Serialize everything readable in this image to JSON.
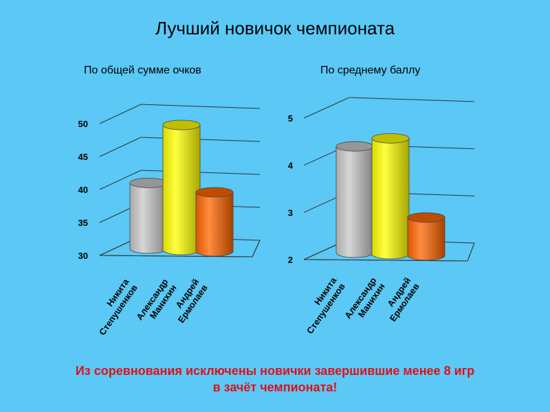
{
  "title": "Лучший новичок чемпионата",
  "note_line1": "Из соревнования  исключены  новички  завершившие  менее  8 игр",
  "note_line2": "в зачёт чемпионата!",
  "chart_data": [
    {
      "type": "bar",
      "title": "По общей сумме очков",
      "categories": [
        [
          "Никита",
          "Степушенков"
        ],
        [
          "Александр",
          "Манихин"
        ],
        [
          "Андрей",
          "Ермолаев"
        ]
      ],
      "values": [
        41,
        50,
        40
      ],
      "ylim": [
        30,
        50
      ],
      "yticks": [
        30,
        35,
        40,
        45,
        50
      ],
      "colors": [
        "#C8C8C8",
        "#FFFF00",
        "#FF6600"
      ],
      "grid": true
    },
    {
      "type": "bar",
      "title": "По среднему баллу",
      "categories": [
        [
          "Никита",
          "Степушенков"
        ],
        [
          "Александр",
          "Манихин"
        ],
        [
          "Андрей",
          "Ермолаев"
        ]
      ],
      "values": [
        4.4,
        4.6,
        2.95
      ],
      "ylim": [
        2,
        5
      ],
      "yticks": [
        2,
        3,
        4,
        5
      ],
      "colors": [
        "#C8C8C8",
        "#FFFF00",
        "#FF6600"
      ],
      "grid": true
    }
  ]
}
